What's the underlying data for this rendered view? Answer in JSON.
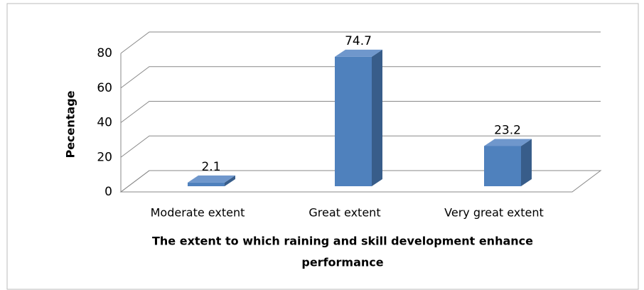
{
  "chart_data": {
    "type": "bar3d",
    "categories": [
      "Moderate extent",
      "Great extent",
      "Very great extent"
    ],
    "values": [
      2.1,
      74.7,
      23.2
    ],
    "color": "#4f81bd",
    "ylim": [
      0,
      80
    ],
    "yticks": [
      0,
      20,
      40,
      60,
      80
    ],
    "grid": true,
    "y_label": "Pecentage",
    "x_label_lines": [
      "The extent to which raining and skill development   enhance",
      "performance"
    ]
  }
}
